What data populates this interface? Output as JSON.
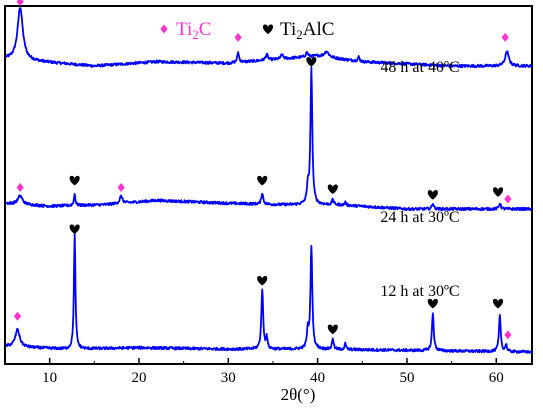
{
  "chart_data": {
    "type": "line",
    "xlabel": "2θ(°)",
    "ylabel": "",
    "xlim": [
      5,
      64
    ],
    "x_ticks": [
      10,
      20,
      30,
      40,
      50,
      60
    ],
    "y_ticks_shown": false,
    "grid": false,
    "legend_placement": "top-center",
    "legend": [
      {
        "name": "Ti2C",
        "marker": "diamond",
        "color": "#ff33cc",
        "text": {
          "base": "Ti",
          "sub": "2",
          "rest": "C"
        }
      },
      {
        "name": "Ti2AlC",
        "marker": "heart",
        "color": "#000000",
        "text": {
          "base": "Ti",
          "sub": "2",
          "rest": "AlC"
        }
      }
    ],
    "line_color": "#0000ff",
    "series": [
      {
        "name": "48 h at 40ºC",
        "offset": 2.0,
        "baseline": 0.0,
        "drift": [
          [
            5,
            0.05
          ],
          [
            15,
            0.0
          ],
          [
            22,
            0.03
          ],
          [
            30,
            0.02
          ],
          [
            40,
            0.07
          ],
          [
            45,
            0.03
          ],
          [
            55,
            0.0
          ],
          [
            64,
            0.0
          ]
        ],
        "peaks": [
          {
            "x": 6.7,
            "h": 0.37,
            "w": 0.35
          },
          {
            "x": 31.1,
            "h": 0.07,
            "w": 0.12
          },
          {
            "x": 34.3,
            "h": 0.04,
            "w": 0.15
          },
          {
            "x": 36.0,
            "h": 0.03,
            "w": 0.15
          },
          {
            "x": 38.8,
            "h": 0.03,
            "w": 0.15
          },
          {
            "x": 41.0,
            "h": 0.04,
            "w": 0.3
          },
          {
            "x": 44.6,
            "h": 0.03,
            "w": 0.12
          },
          {
            "x": 61.2,
            "h": 0.1,
            "w": 0.25
          }
        ],
        "markers": [
          {
            "type": "Ti2C",
            "x": 6.7,
            "y": 2.45
          },
          {
            "type": "Ti2C",
            "x": 31.1,
            "y": 2.2
          },
          {
            "type": "Ti2C",
            "x": 61.0,
            "y": 2.2
          }
        ]
      },
      {
        "name": "24 h at 30ºC",
        "offset": 1.0,
        "baseline": 0.0,
        "drift": [
          [
            5,
            0.04
          ],
          [
            10,
            0.02
          ],
          [
            16,
            0.03
          ],
          [
            22,
            0.06
          ],
          [
            30,
            0.04
          ],
          [
            36,
            0.03
          ],
          [
            42,
            0.03
          ],
          [
            50,
            0.0
          ],
          [
            64,
            0.0
          ]
        ],
        "peaks": [
          {
            "x": 6.7,
            "h": 0.06,
            "w": 0.3
          },
          {
            "x": 12.8,
            "h": 0.08,
            "w": 0.1
          },
          {
            "x": 18.0,
            "h": 0.05,
            "w": 0.18
          },
          {
            "x": 33.8,
            "h": 0.08,
            "w": 0.12
          },
          {
            "x": 39.3,
            "h": 0.95,
            "w": 0.12
          },
          {
            "x": 38.9,
            "h": 0.12,
            "w": 0.12
          },
          {
            "x": 41.7,
            "h": 0.04,
            "w": 0.1
          },
          {
            "x": 43.1,
            "h": 0.02,
            "w": 0.1
          },
          {
            "x": 52.9,
            "h": 0.04,
            "w": 0.12
          },
          {
            "x": 60.4,
            "h": 0.04,
            "w": 0.12
          }
        ],
        "markers": [
          {
            "type": "Ti2C",
            "x": 6.7,
            "y": 1.15
          },
          {
            "type": "Ti2AlC",
            "x": 12.8,
            "y": 1.2
          },
          {
            "type": "Ti2C",
            "x": 18.0,
            "y": 1.15
          },
          {
            "type": "Ti2AlC",
            "x": 33.8,
            "y": 1.2
          },
          {
            "type": "Ti2AlC",
            "x": 39.3,
            "y": 2.03
          },
          {
            "type": "Ti2AlC",
            "x": 41.7,
            "y": 1.14
          },
          {
            "type": "Ti2AlC",
            "x": 52.9,
            "y": 1.1
          },
          {
            "type": "Ti2AlC",
            "x": 60.2,
            "y": 1.12
          },
          {
            "type": "Ti2C",
            "x": 61.3,
            "y": 1.07
          }
        ]
      },
      {
        "name": "12 h at 30ºC",
        "offset": 0.0,
        "baseline": 0.0,
        "drift": [
          [
            5,
            0.04
          ],
          [
            12,
            0.02
          ],
          [
            20,
            0.03
          ],
          [
            30,
            0.02
          ],
          [
            40,
            0.02
          ],
          [
            64,
            0.0
          ]
        ],
        "peaks": [
          {
            "x": 6.4,
            "h": 0.12,
            "w": 0.3
          },
          {
            "x": 12.8,
            "h": 0.8,
            "w": 0.1
          },
          {
            "x": 33.8,
            "h": 0.42,
            "w": 0.12
          },
          {
            "x": 34.3,
            "h": 0.08,
            "w": 0.1
          },
          {
            "x": 39.3,
            "h": 0.72,
            "w": 0.12
          },
          {
            "x": 38.9,
            "h": 0.12,
            "w": 0.12
          },
          {
            "x": 41.7,
            "h": 0.08,
            "w": 0.1
          },
          {
            "x": 43.1,
            "h": 0.04,
            "w": 0.1
          },
          {
            "x": 52.9,
            "h": 0.26,
            "w": 0.12
          },
          {
            "x": 60.4,
            "h": 0.25,
            "w": 0.12
          },
          {
            "x": 61.1,
            "h": 0.05,
            "w": 0.1
          }
        ],
        "markers": [
          {
            "type": "Ti2C",
            "x": 6.4,
            "y": 0.25
          },
          {
            "type": "Ti2AlC",
            "x": 12.8,
            "y": 0.86
          },
          {
            "type": "Ti2AlC",
            "x": 33.8,
            "y": 0.5
          },
          {
            "type": "Ti2AlC",
            "x": 41.7,
            "y": 0.16
          },
          {
            "type": "Ti2AlC",
            "x": 52.9,
            "y": 0.34
          },
          {
            "type": "Ti2AlC",
            "x": 60.2,
            "y": 0.34
          },
          {
            "type": "Ti2C",
            "x": 61.3,
            "y": 0.12
          }
        ]
      }
    ]
  }
}
